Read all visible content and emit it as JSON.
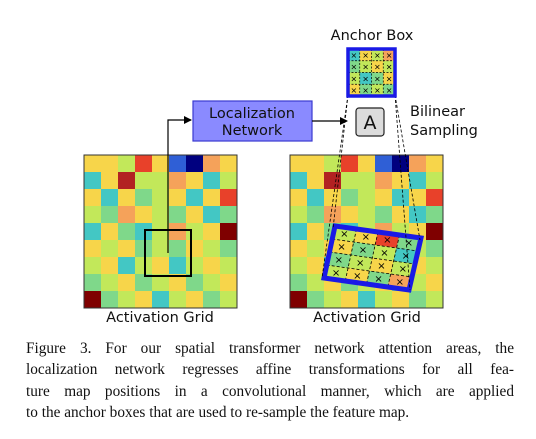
{
  "diagram": {
    "anchor_box_label": "Anchor Box",
    "localization_network_label": [
      "Localization",
      "Network"
    ],
    "affine_symbol": "A",
    "bilinear_sampling_label": [
      "Bilinear",
      "Sampling"
    ],
    "left_grid_label": "Activation Grid",
    "right_grid_label": "Activation Grid",
    "sample_marker": "×",
    "colors": {
      "network_box_fill": "#8a8aff",
      "network_box_border": "#3a3ad0",
      "affine_box_fill": "#dcdcdc",
      "anchor_frame": "#1a1ae6",
      "palette": [
        "#7f0000",
        "#b22222",
        "#e8412a",
        "#f5a25a",
        "#f7d54a",
        "#c2e85a",
        "#7fd88a",
        "#43c7c4",
        "#3a9ee6",
        "#2f5fd6",
        "#00007f"
      ]
    },
    "activation_grid_levels": [
      [
        4,
        4,
        5,
        2,
        4,
        9,
        10,
        3,
        4
      ],
      [
        7,
        4,
        1,
        5,
        5,
        3,
        4,
        7,
        5
      ],
      [
        4,
        7,
        4,
        6,
        5,
        4,
        7,
        4,
        2
      ],
      [
        5,
        6,
        3,
        4,
        5,
        6,
        4,
        7,
        6
      ],
      [
        7,
        4,
        6,
        7,
        5,
        3,
        5,
        4,
        0
      ],
      [
        4,
        5,
        4,
        6,
        5,
        6,
        4,
        5,
        6
      ],
      [
        5,
        4,
        7,
        5,
        4,
        7,
        5,
        4,
        5
      ],
      [
        6,
        5,
        4,
        6,
        5,
        4,
        6,
        5,
        4
      ],
      [
        0,
        6,
        5,
        4,
        7,
        5,
        4,
        6,
        5
      ]
    ],
    "anchor_box_levels": [
      [
        7,
        4,
        5,
        3
      ],
      [
        6,
        5,
        4,
        5
      ],
      [
        5,
        7,
        6,
        4
      ],
      [
        4,
        6,
        5,
        6
      ]
    ],
    "sampled_region_levels": [
      [
        5,
        4,
        2,
        6
      ],
      [
        4,
        6,
        5,
        7
      ],
      [
        6,
        5,
        4,
        5
      ],
      [
        5,
        4,
        6,
        3
      ]
    ]
  },
  "caption": {
    "lines": [
      "Figure 3. For our spatial transformer network attention areas, the",
      "localization network regresses affine transformations for all fea-",
      "ture map positions in a convolutional manner, which are applied",
      "to the anchor boxes that are used to re-sample the feature map."
    ]
  }
}
